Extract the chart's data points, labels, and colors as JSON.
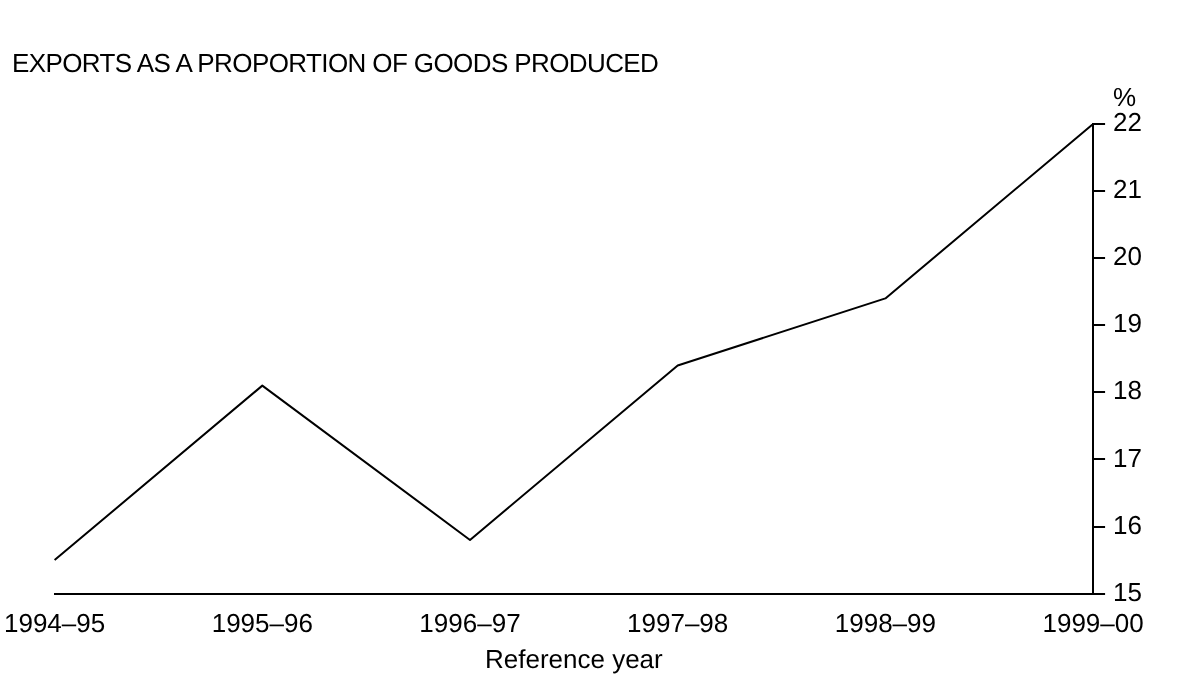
{
  "chart_data": {
    "type": "line",
    "title": "EXPORTS AS A PROPORTION OF GOODS PRODUCED",
    "xlabel": "Reference year",
    "ylabel": "%",
    "categories": [
      "1994–95",
      "1995–96",
      "1996–97",
      "1997–98",
      "1998–99",
      "1999–00"
    ],
    "series": [
      {
        "color": "#000000",
        "values": [
          15.5,
          18.1,
          15.8,
          18.4,
          19.4,
          22.0
        ]
      }
    ],
    "ylim": [
      15,
      22
    ],
    "yticks": [
      15,
      16,
      17,
      18,
      19,
      20,
      21,
      22
    ],
    "grid": false,
    "legend": false,
    "marker": "none",
    "line_style": "solid"
  }
}
